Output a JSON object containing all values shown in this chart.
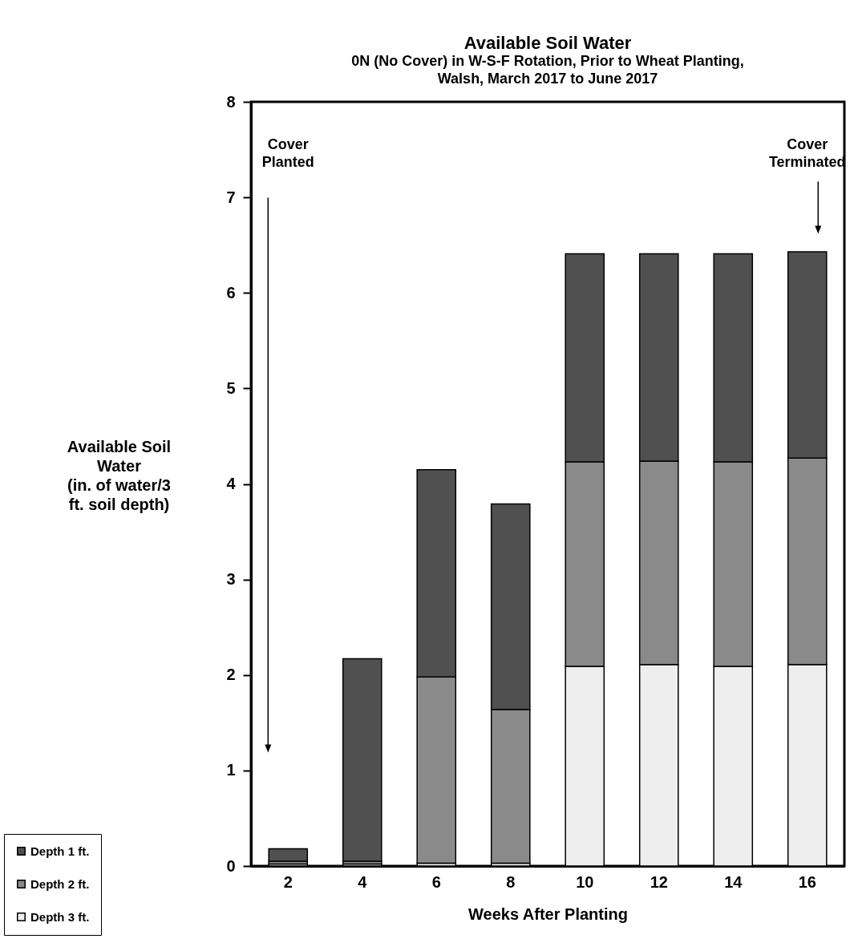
{
  "chart_data": {
    "type": "bar",
    "title": "Available Soil Water",
    "subtitle": "0N (No Cover) in W-S-F Rotation, Prior to Wheat Planting,\nWalsh, March 2017 to June 2017",
    "xlabel": "Weeks After Planting",
    "ylabel": "Available Soil\nWater\n(in. of water/3\nft. soil depth)",
    "categories": [
      "2",
      "4",
      "6",
      "8",
      "10",
      "12",
      "14",
      "16"
    ],
    "stacked": true,
    "series": [
      {
        "name": "Depth 3 ft.",
        "color": "#eeeeee",
        "values": [
          0.02,
          0.02,
          0.03,
          0.03,
          2.09,
          2.11,
          2.09,
          2.11
        ]
      },
      {
        "name": "Depth 2 ft.",
        "color": "#8a8a8a",
        "values": [
          0.03,
          0.03,
          1.95,
          1.61,
          2.14,
          2.13,
          2.14,
          2.16
        ]
      },
      {
        "name": "Depth 1 ft.",
        "color": "#505050",
        "values": [
          0.13,
          2.12,
          2.17,
          2.15,
          2.18,
          2.17,
          2.18,
          2.16
        ]
      }
    ],
    "ylim": [
      0,
      8
    ],
    "yticks": [
      0,
      1,
      2,
      3,
      4,
      5,
      6,
      7,
      8
    ],
    "grid": false,
    "legend": "bottom left",
    "annotations": [
      "Cover\nPlanted",
      "Cover\nTerminated"
    ]
  }
}
